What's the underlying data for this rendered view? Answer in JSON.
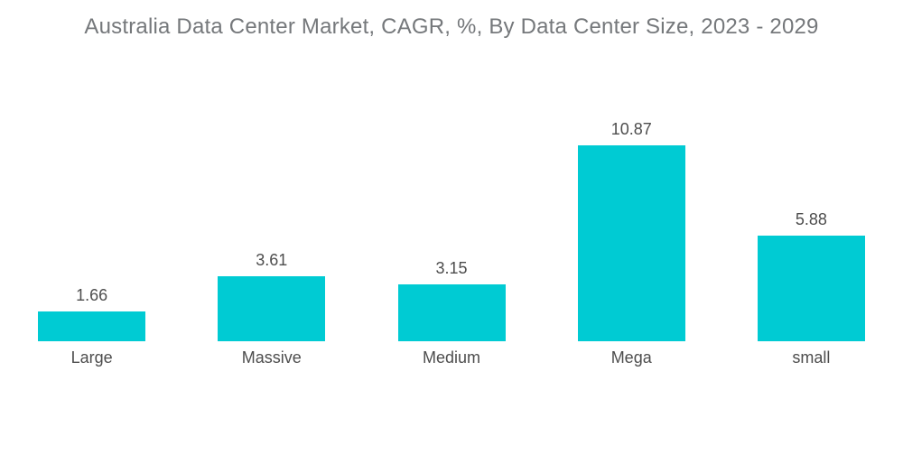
{
  "title": "Australia Data Center Market, CAGR, %, By Data Center Size, 2023 - 2029",
  "colors": {
    "bar": "#00CBD3",
    "title_text": "#75787B",
    "label_text": "#4D4D4D",
    "background": "#FFFFFF"
  },
  "chart_data": {
    "type": "bar",
    "title": "Australia Data Center Market, CAGR, %, By Data Center Size, 2023 - 2029",
    "categories": [
      "Large",
      "Massive",
      "Medium",
      "Mega",
      "small"
    ],
    "values": [
      1.66,
      3.61,
      3.15,
      10.87,
      5.88
    ],
    "value_labels": [
      "1.66",
      "3.61",
      "3.15",
      "10.87",
      "5.88"
    ],
    "xlabel": "",
    "ylabel": "",
    "ylim": [
      0,
      12
    ],
    "grid": false,
    "legend": false,
    "axis_lines": false
  }
}
